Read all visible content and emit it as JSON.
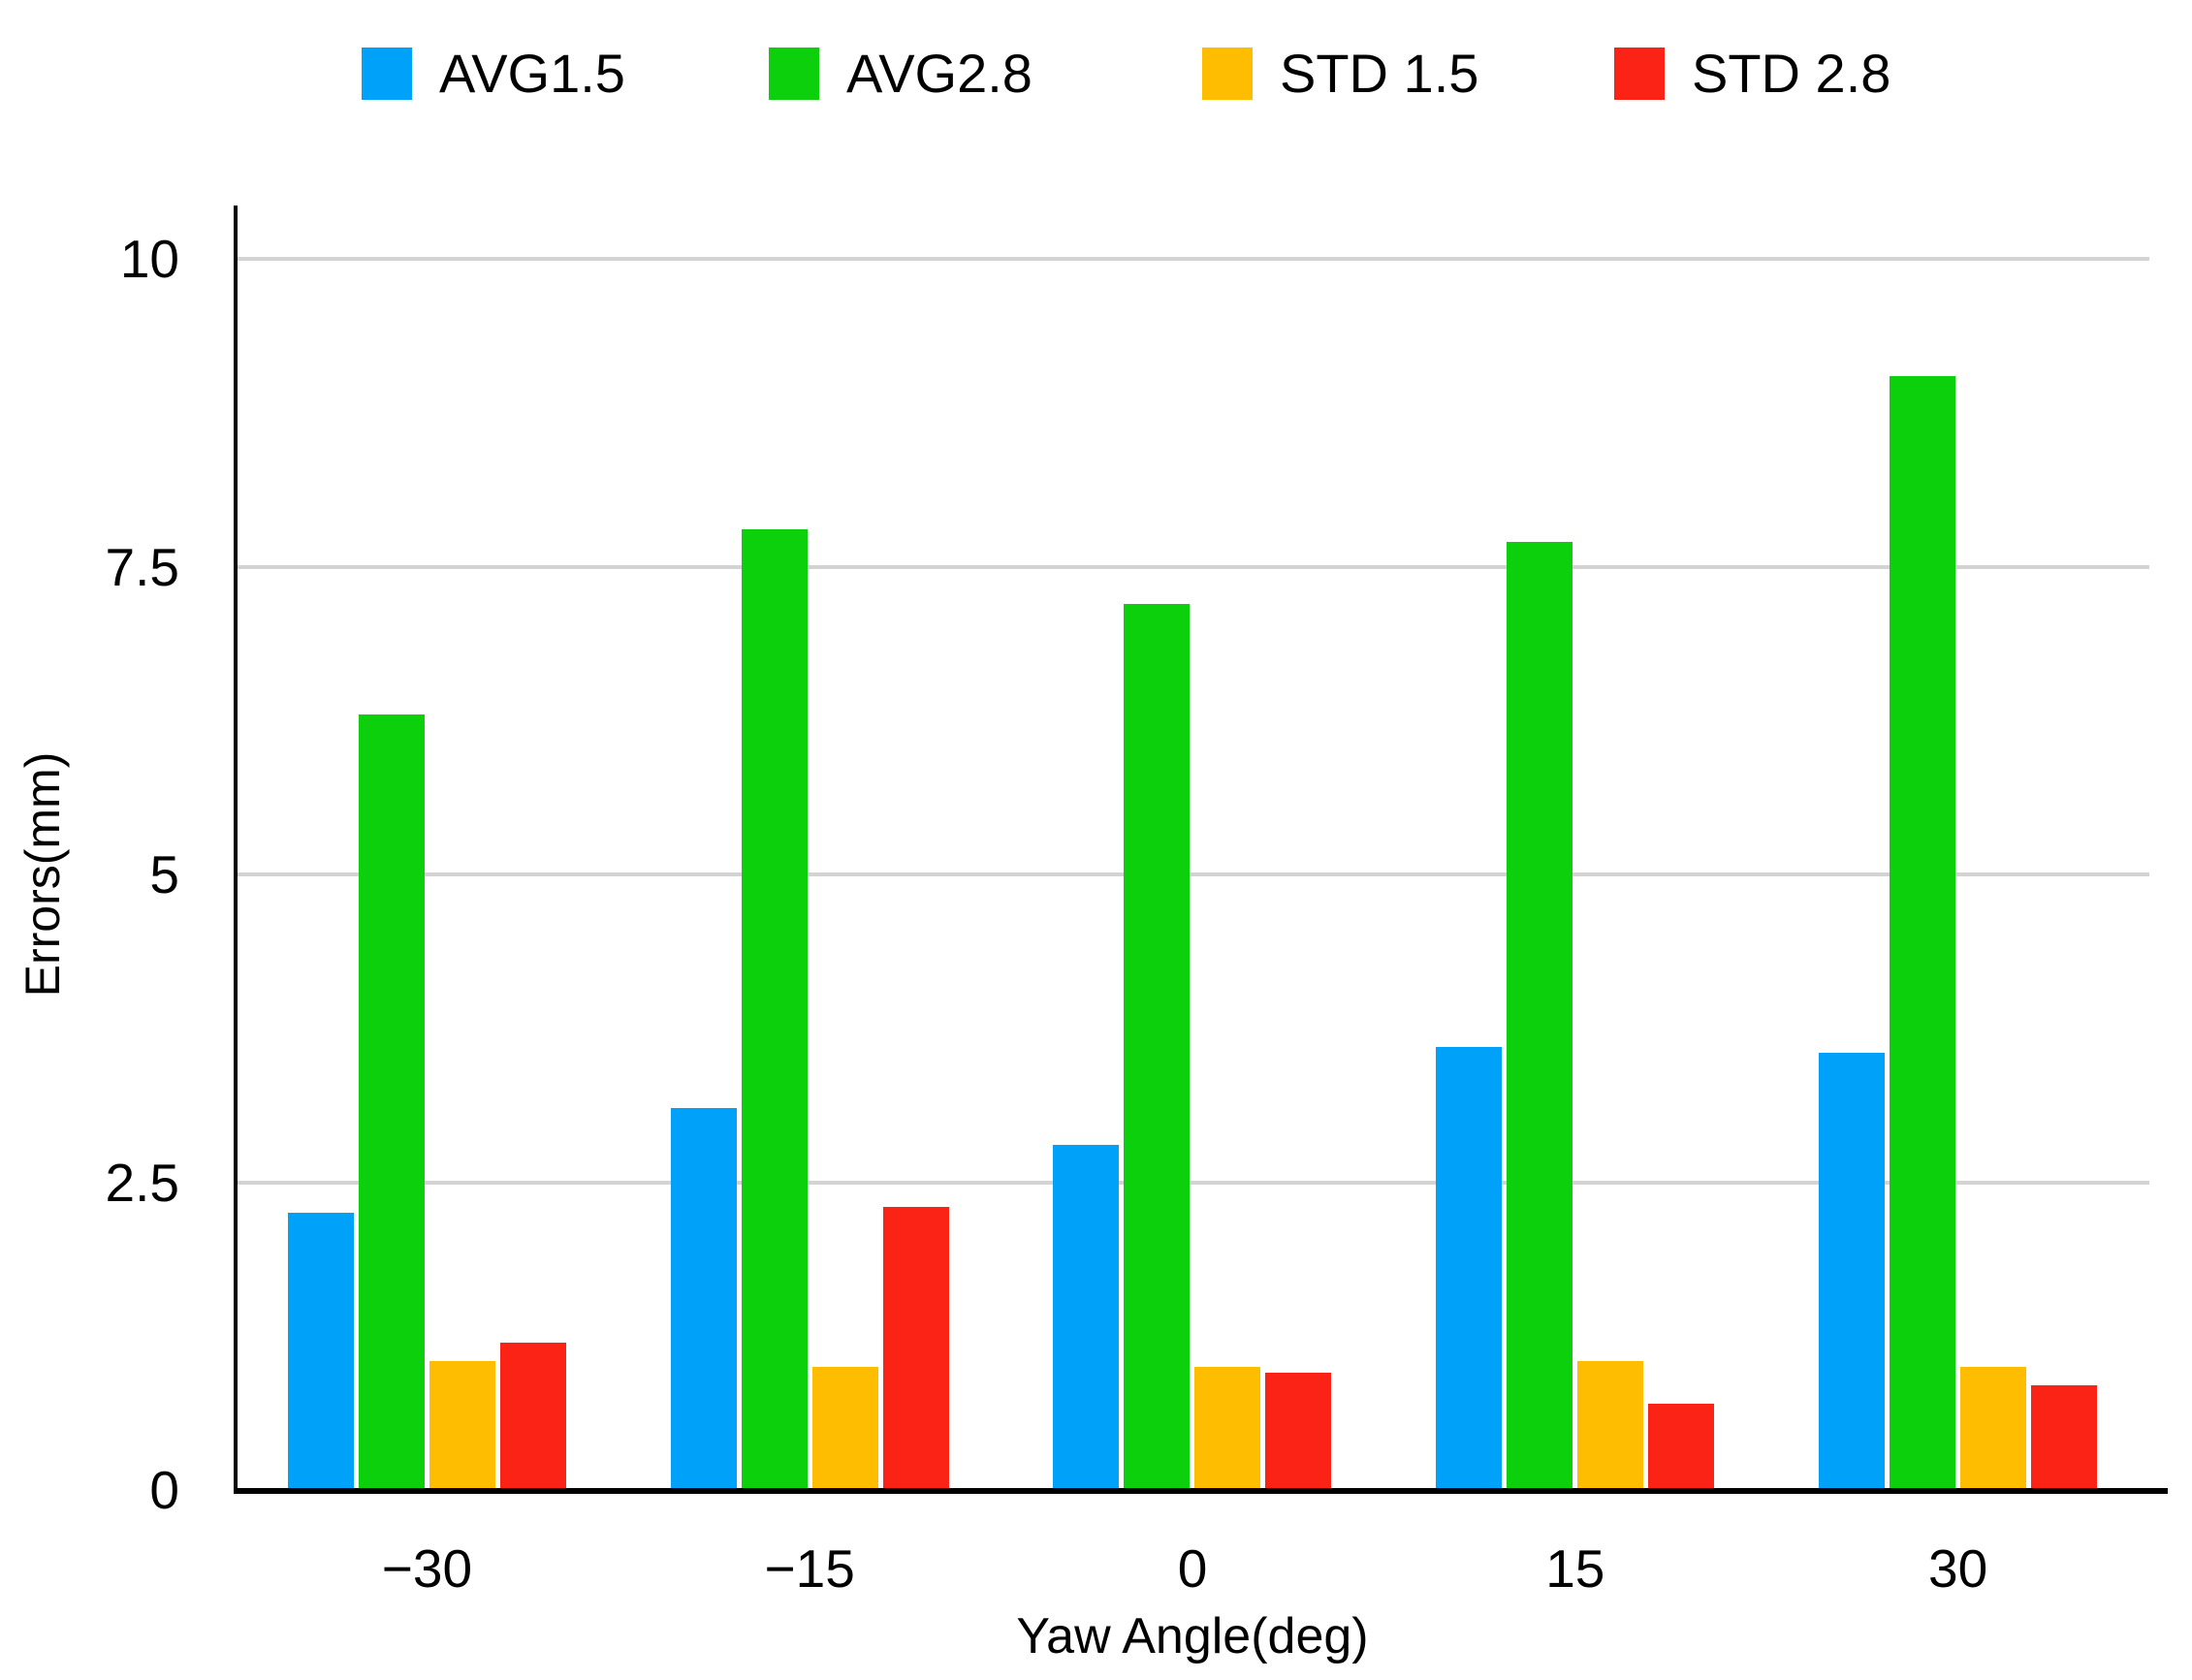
{
  "chart_data": {
    "type": "bar",
    "title": "",
    "categories": [
      "−30",
      "−15",
      "0",
      "15",
      "30"
    ],
    "series": [
      {
        "name": "AVG1.5",
        "color": "#00A2F9",
        "values": [
          2.25,
          3.1,
          2.8,
          3.6,
          3.55
        ]
      },
      {
        "name": "AVG2.8",
        "color": "#0CD00C",
        "values": [
          6.3,
          7.8,
          7.2,
          7.7,
          9.05
        ]
      },
      {
        "name": "STD 1.5",
        "color": "#FFBD00",
        "values": [
          1.05,
          1.0,
          1.0,
          1.05,
          1.0
        ]
      },
      {
        "name": "STD 2.8",
        "color": "#FB2216",
        "values": [
          1.2,
          2.3,
          0.95,
          0.7,
          0.85
        ]
      }
    ],
    "xlabel": "Yaw Angle(deg)",
    "ylabel": "Errors(mm)",
    "ylim": [
      0,
      10
    ],
    "yticks": [
      0,
      2.5,
      5,
      7.5,
      10
    ],
    "ytick_labels": [
      "0",
      "2.5",
      "5",
      "7.5",
      "10"
    ],
    "grid": "horizontal",
    "legend_position": "top",
    "axis_color": "#000000",
    "gridline_color": "#D3D3D3",
    "background": "#FFFFFF"
  }
}
